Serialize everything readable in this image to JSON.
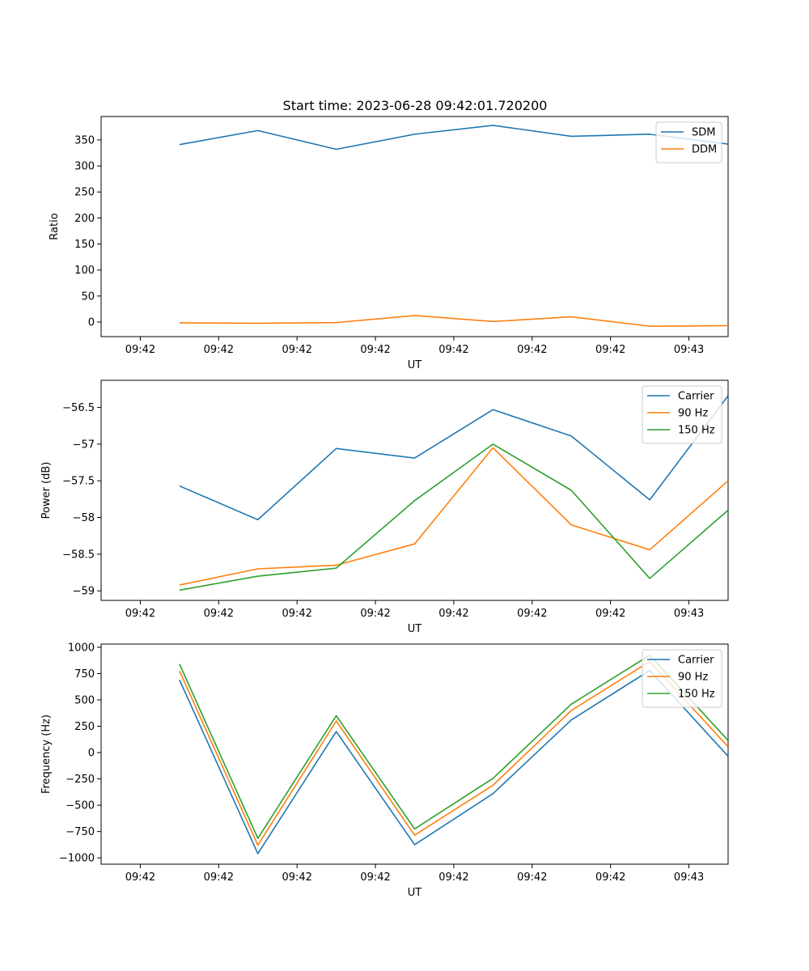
{
  "figure": {
    "title": "Start time: 2023-06-28 09:42:01.720200"
  },
  "colors": {
    "blue": "#1f77b4",
    "orange": "#ff7f0e",
    "green": "#2ca02c"
  },
  "chart_data": [
    {
      "type": "line",
      "title": "Start time: 2023-06-28 09:42:01.720200",
      "xlabel": "UT",
      "ylabel": "Ratio",
      "xticks": [
        "09:42",
        "09:42",
        "09:42",
        "09:42",
        "09:42",
        "09:42",
        "09:42",
        "09:43"
      ],
      "yticks": [
        0,
        50,
        100,
        150,
        200,
        250,
        300,
        350
      ],
      "ylim": [
        -28,
        395
      ],
      "x_ticks_index": [
        0.5,
        1.5,
        2.5,
        3.5,
        4.5,
        5.5,
        6.5,
        7.5
      ],
      "x_range_index": [
        0,
        8
      ],
      "x_index": [
        1,
        2,
        3,
        4,
        5,
        6,
        7,
        8
      ],
      "legend_position": "upper right",
      "series": [
        {
          "name": "SDM",
          "color": "#1f77b4",
          "values": [
            341,
            368,
            332,
            361,
            378,
            357,
            361,
            342
          ]
        },
        {
          "name": "DDM",
          "color": "#ff7f0e",
          "values": [
            -1.5,
            -2.5,
            -1,
            12.5,
            1,
            10,
            -8,
            -7
          ]
        }
      ]
    },
    {
      "type": "line",
      "xlabel": "UT",
      "ylabel": "Power (dB)",
      "xticks": [
        "09:42",
        "09:42",
        "09:42",
        "09:42",
        "09:42",
        "09:42",
        "09:42",
        "09:43"
      ],
      "yticks": [
        -59.0,
        -58.5,
        -58.0,
        -57.5,
        -57.0,
        -56.5
      ],
      "ylim": [
        -59.13,
        -56.13
      ],
      "x_ticks_index": [
        0.5,
        1.5,
        2.5,
        3.5,
        4.5,
        5.5,
        6.5,
        7.5
      ],
      "x_range_index": [
        0,
        8
      ],
      "x_index": [
        1,
        2,
        3,
        4,
        5,
        6,
        7,
        8
      ],
      "legend_position": "upper right",
      "series": [
        {
          "name": "Carrier",
          "color": "#1f77b4",
          "values": [
            -57.57,
            -58.03,
            -57.06,
            -57.19,
            -56.53,
            -56.89,
            -57.76,
            -56.34
          ]
        },
        {
          "name": "90 Hz",
          "color": "#ff7f0e",
          "values": [
            -58.92,
            -58.7,
            -58.65,
            -58.36,
            -57.05,
            -58.1,
            -58.44,
            -57.5
          ]
        },
        {
          "name": "150 Hz",
          "color": "#2ca02c",
          "values": [
            -58.99,
            -58.8,
            -58.69,
            -57.77,
            -57.0,
            -57.63,
            -58.83,
            -57.9
          ]
        }
      ]
    },
    {
      "type": "line",
      "xlabel": "UT",
      "ylabel": "Frequency (Hz)",
      "xticks": [
        "09:42",
        "09:42",
        "09:42",
        "09:42",
        "09:42",
        "09:42",
        "09:42",
        "09:43"
      ],
      "yticks": [
        -1000,
        -750,
        -500,
        -250,
        0,
        250,
        500,
        750,
        1000
      ],
      "ylim": [
        -1060,
        1030
      ],
      "x_ticks_index": [
        0.5,
        1.5,
        2.5,
        3.5,
        4.5,
        5.5,
        6.5,
        7.5
      ],
      "x_range_index": [
        0,
        8
      ],
      "x_index": [
        1,
        2,
        3,
        4,
        5,
        6,
        7,
        8
      ],
      "legend_position": "upper right",
      "series": [
        {
          "name": "Carrier",
          "color": "#1f77b4",
          "values": [
            690,
            -960,
            200,
            -875,
            -390,
            310,
            780,
            -35
          ]
        },
        {
          "name": "90 Hz",
          "color": "#ff7f0e",
          "values": [
            775,
            -880,
            300,
            -785,
            -310,
            400,
            865,
            55
          ]
        },
        {
          "name": "150 Hz",
          "color": "#2ca02c",
          "values": [
            840,
            -815,
            350,
            -725,
            -245,
            460,
            925,
            115
          ]
        }
      ]
    }
  ]
}
